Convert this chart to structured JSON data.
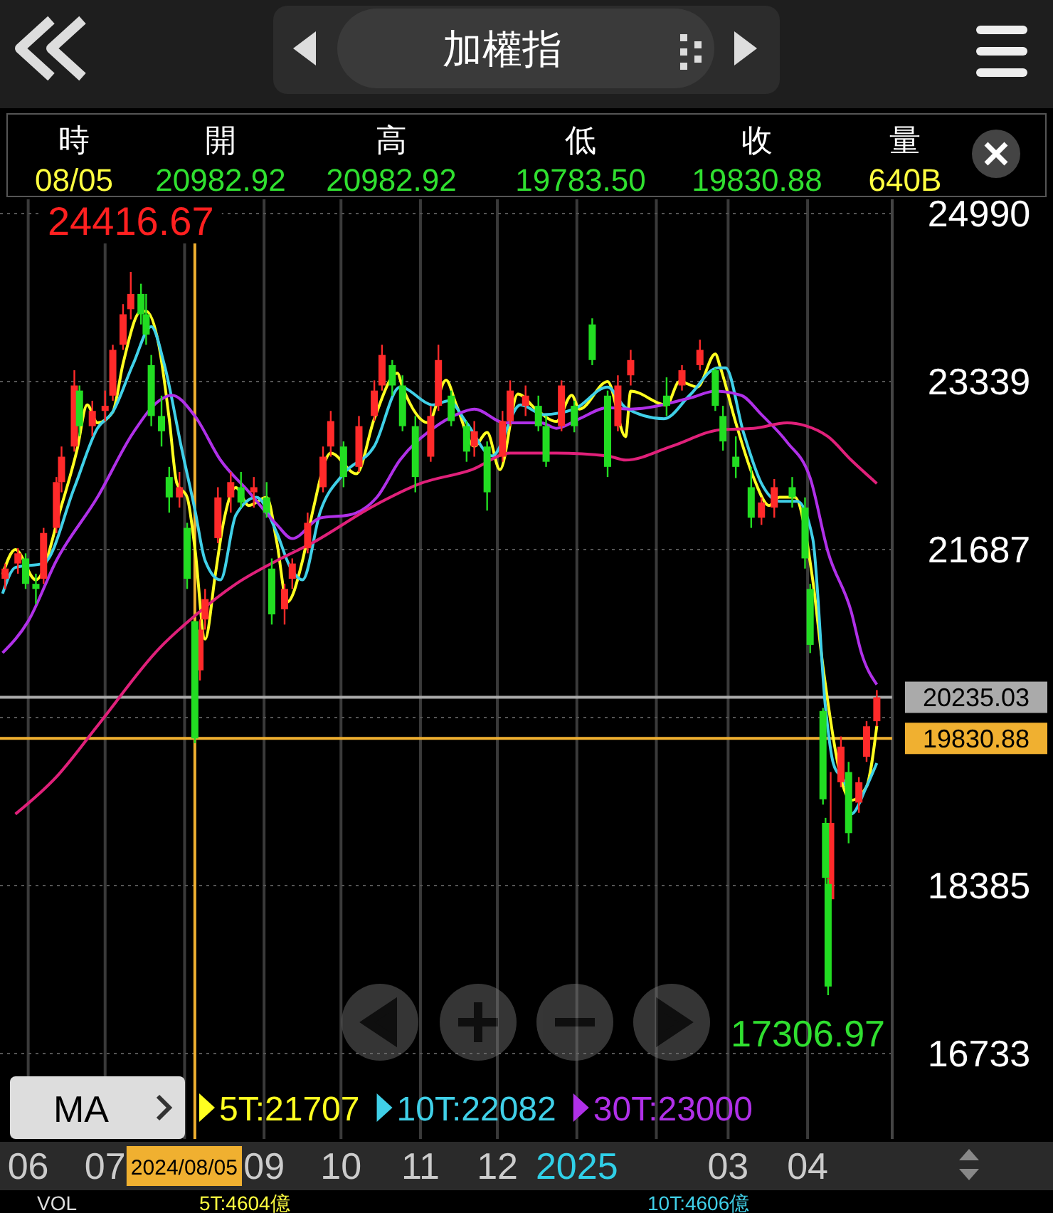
{
  "chart_data": {
    "type": "candlestick",
    "title": "加權指",
    "xlim": [
      "2024-05-21",
      "2025-05-04"
    ],
    "xticks": [
      {
        "value": "2024-06-01",
        "label": "06"
      },
      {
        "value": "2024-07-01",
        "label": "07"
      },
      {
        "value": "2024-08-01",
        "label": null
      },
      {
        "value": "2024-09-01",
        "label": "09"
      },
      {
        "value": "2024-10-01",
        "label": "10"
      },
      {
        "value": "2024-11-01",
        "label": "11"
      },
      {
        "value": "2024-12-01",
        "label": "12"
      },
      {
        "value": "2025-01-01",
        "label": "2025"
      },
      {
        "value": "2025-02-01",
        "label": null
      },
      {
        "value": "2025-03-01",
        "label": "03"
      },
      {
        "value": "2025-04-01",
        "label": "04"
      }
    ],
    "ylim": [
      16733,
      24990
    ],
    "yticks": [
      16733,
      18385,
      {
        "value": 20036,
        "label": null
      },
      21687,
      23339,
      24990
    ],
    "grid": true,
    "legend": "bottom",
    "marker": "none",
    "line_style": "solid",
    "ref_lines": [
      {
        "axis": "y",
        "value": 20235.03,
        "label": "20235.03",
        "color": "#aaaaaa"
      },
      {
        "axis": "y",
        "value": 19830.88,
        "label": "19830.88",
        "color": "#f0b030"
      },
      {
        "axis": "x",
        "value": "2024-08-05",
        "label": "2024/08/05",
        "color": "#f0b030"
      }
    ],
    "series": [
      {
        "type": "candlestick",
        "color": "#ff2a2a",
        "x": [
          "2024-05-23",
          "2024-05-28",
          "2024-06-07",
          "2024-06-12",
          "2024-06-14",
          "2024-06-19",
          "2024-06-26",
          "2024-07-01",
          "2024-07-04",
          "2024-07-08",
          "2024-07-11",
          "2024-07-30",
          "2024-08-07",
          "2024-08-09",
          "2024-08-14",
          "2024-08-19",
          "2024-08-28",
          "2024-09-09",
          "2024-09-12",
          "2024-09-18",
          "2024-09-24",
          "2024-09-27",
          "2024-10-08",
          "2024-10-14",
          "2024-10-17",
          "2024-11-05",
          "2024-11-08",
          "2024-11-22",
          "2024-12-03",
          "2024-12-06",
          "2024-12-12",
          "2024-12-26",
          "2025-01-17",
          "2025-01-22",
          "2025-02-11",
          "2025-02-18",
          "2025-03-14",
          "2025-03-19",
          "2025-04-10",
          "2025-04-14",
          "2025-04-21",
          "2025-04-24",
          "2025-04-28"
        ],
        "ohlc": [
          [
            21400,
            21550,
            21300,
            21500
          ],
          [
            21550,
            21700,
            21450,
            21650
          ],
          [
            21400,
            21900,
            21350,
            21850
          ],
          [
            21900,
            22400,
            21850,
            22350
          ],
          [
            22350,
            22700,
            22250,
            22600
          ],
          [
            22700,
            23450,
            22650,
            23300
          ],
          [
            22900,
            23150,
            22800,
            23050
          ],
          [
            23050,
            23250,
            22950,
            23100
          ],
          [
            23200,
            23700,
            23150,
            23650
          ],
          [
            23700,
            24100,
            23650,
            24000
          ],
          [
            24050,
            24416.67,
            23950,
            24200
          ],
          [
            22200,
            22450,
            22100,
            22300
          ],
          [
            20500,
            21000,
            20400,
            20900
          ],
          [
            21000,
            21300,
            20900,
            21200
          ],
          [
            21800,
            22300,
            21750,
            22200
          ],
          [
            22200,
            22450,
            22050,
            22350
          ],
          [
            22250,
            22400,
            22100,
            22300
          ],
          [
            21100,
            21350,
            20950,
            21300
          ],
          [
            21400,
            21600,
            21300,
            21550
          ],
          [
            21700,
            22050,
            21650,
            21950
          ],
          [
            22300,
            22700,
            22250,
            22600
          ],
          [
            22700,
            23050,
            22600,
            22950
          ],
          [
            22500,
            23000,
            22450,
            22900
          ],
          [
            23000,
            23350,
            22950,
            23250
          ],
          [
            23300,
            23700,
            23250,
            23600
          ],
          [
            22600,
            23100,
            22550,
            23000
          ],
          [
            23100,
            23700,
            23050,
            23550
          ],
          [
            22700,
            22950,
            22600,
            22850
          ],
          [
            22600,
            23050,
            22550,
            22950
          ],
          [
            22950,
            23350,
            22900,
            23250
          ],
          [
            23100,
            23300,
            23000,
            23200
          ],
          [
            22900,
            23350,
            22850,
            23300
          ],
          [
            22900,
            23400,
            22850,
            23300
          ],
          [
            23400,
            23650,
            23300,
            23550
          ],
          [
            23300,
            23500,
            23250,
            23450
          ],
          [
            23500,
            23750,
            23450,
            23650
          ],
          [
            22000,
            22200,
            21930,
            22150
          ],
          [
            22100,
            22380,
            22000,
            22300
          ],
          [
            18250,
            19500,
            18230,
            19000
          ],
          [
            19400,
            19850,
            19350,
            19750
          ],
          [
            19200,
            19450,
            19100,
            19400
          ],
          [
            19650,
            20000,
            19600,
            19950
          ],
          [
            20000,
            20306,
            19950,
            20235.03
          ]
        ]
      },
      {
        "type": "candlestick",
        "color": "#22dd22",
        "x": [
          "2024-05-31",
          "2024-06-04",
          "2024-06-21",
          "2024-07-15",
          "2024-07-17",
          "2024-07-19",
          "2024-07-23",
          "2024-07-26",
          "2024-08-02",
          "2024-08-05",
          "2024-08-23",
          "2024-09-02",
          "2024-09-04",
          "2024-10-02",
          "2024-10-21",
          "2024-10-25",
          "2024-10-30",
          "2024-11-13",
          "2024-11-19",
          "2024-11-27",
          "2024-12-17",
          "2024-12-20",
          "2024-12-31",
          "2025-01-07",
          "2025-01-13",
          "2025-02-05",
          "2025-02-24",
          "2025-02-27",
          "2025-03-04",
          "2025-03-10",
          "2025-03-26",
          "2025-03-31",
          "2025-04-02",
          "2025-04-07",
          "2025-04-08",
          "2025-04-09",
          "2025-04-17"
        ],
        "ohlc": [
          [
            21600,
            21650,
            21300,
            21350
          ],
          [
            21350,
            21450,
            21150,
            21300
          ],
          [
            23250,
            23300,
            22800,
            22900
          ],
          [
            24200,
            24300,
            23900,
            24000
          ],
          [
            24000,
            24200,
            23700,
            23800
          ],
          [
            23500,
            23600,
            22900,
            23000
          ],
          [
            23000,
            23200,
            22700,
            22850
          ],
          [
            22400,
            22500,
            22050,
            22200
          ],
          [
            21900,
            21950,
            21300,
            21400
          ],
          [
            20982.92,
            20982.92,
            19783.5,
            19830.88
          ],
          [
            22300,
            22450,
            22100,
            22150
          ],
          [
            22200,
            22350,
            22000,
            22050
          ],
          [
            21500,
            21600,
            20950,
            21050
          ],
          [
            22700,
            22750,
            22300,
            22400
          ],
          [
            23500,
            23550,
            23200,
            23300
          ],
          [
            23300,
            23400,
            22850,
            22900
          ],
          [
            22900,
            23000,
            22250,
            22400
          ],
          [
            23200,
            23250,
            22900,
            22950
          ],
          [
            22900,
            22950,
            22550,
            22650
          ],
          [
            22700,
            22750,
            22070,
            22250
          ],
          [
            23100,
            23200,
            22850,
            22900
          ],
          [
            22900,
            23000,
            22500,
            22550
          ],
          [
            23100,
            23150,
            22840,
            22900
          ],
          [
            23900,
            23960,
            23500,
            23550
          ],
          [
            23200,
            23250,
            22400,
            22500
          ],
          [
            23200,
            23380,
            23000,
            23100
          ],
          [
            23450,
            23470,
            23050,
            23100
          ],
          [
            23000,
            23100,
            22660,
            22750
          ],
          [
            22600,
            22800,
            22390,
            22500
          ],
          [
            22300,
            22500,
            21900,
            22000
          ],
          [
            22300,
            22400,
            22100,
            22200
          ],
          [
            22100,
            22200,
            21500,
            21600
          ],
          [
            21300,
            21350,
            20670,
            20750
          ],
          [
            20100,
            20130,
            19180,
            19232
          ],
          [
            19000,
            19050,
            18200,
            18460
          ],
          [
            18400,
            18450,
            17306.97,
            17392
          ],
          [
            19500,
            19600,
            18800,
            18900
          ]
        ]
      },
      {
        "type": "line",
        "name": "5T:21707",
        "color": "#ffff20",
        "x": [
          "2024-05-22",
          "2024-05-27",
          "2024-06-04",
          "2024-06-07",
          "2024-06-14",
          "2024-06-20",
          "2024-06-24",
          "2024-06-28",
          "2024-07-04",
          "2024-07-08",
          "2024-07-15",
          "2024-07-17",
          "2024-07-22",
          "2024-07-26",
          "2024-07-29",
          "2024-08-02",
          "2024-08-05",
          "2024-08-09",
          "2024-08-13",
          "2024-08-16",
          "2024-08-21",
          "2024-08-26",
          "2024-09-02",
          "2024-09-06",
          "2024-09-10",
          "2024-09-16",
          "2024-09-20",
          "2024-09-27",
          "2024-10-07",
          "2024-10-14",
          "2024-10-23",
          "2024-10-25",
          "2024-11-04",
          "2024-11-11",
          "2024-11-15",
          "2024-11-22",
          "2024-11-27",
          "2024-12-02",
          "2024-12-09",
          "2024-12-16",
          "2024-12-24",
          "2024-12-30",
          "2025-01-02",
          "2025-01-13",
          "2025-01-20",
          "2025-01-22",
          "2025-02-05",
          "2025-02-10",
          "2025-02-17",
          "2025-02-24",
          "2025-02-26",
          "2025-03-04",
          "2025-03-11",
          "2025-03-17",
          "2025-03-21",
          "2025-03-27",
          "2025-03-31",
          "2025-04-03",
          "2025-04-07",
          "2025-04-10",
          "2025-04-15",
          "2025-04-18",
          "2025-04-24",
          "2025-04-28"
        ],
        "values": [
          21443,
          21687,
          21389,
          null,
          22120,
          22662,
          23109,
          22933,
          23041,
          23515,
          24030,
          24030,
          23691,
          22973,
          22337,
          22201,
          21707,
          20807,
          21443,
          21931,
          22296,
          22120,
          22201,
          21755,
          21172,
          21579,
          22066,
          22635,
          22432,
          22973,
          23420,
          23285,
          22933,
          23352,
          23109,
          22703,
          22838,
          22472,
          23217,
          23068,
          22946,
          23204,
          23068,
          23339,
          22797,
          23244,
          23109,
          23339,
          23285,
          23610,
          23474,
          22933,
          22391,
          22120,
          22201,
          22201,
          null,
          21389,
          20536,
          null,
          null,
          19223,
          19358,
          19954
        ]
      },
      {
        "type": "line",
        "name": "10T:22082",
        "color": "#40d0e8",
        "x": [
          "2024-05-22",
          "2024-05-27",
          "2024-06-07",
          "2024-06-19",
          "2024-06-28",
          "2024-07-04",
          "2024-07-12",
          "2024-07-19",
          "2024-07-24",
          "2024-07-31",
          "2024-08-05",
          "2024-08-09",
          "2024-08-15",
          "2024-08-21",
          "2024-08-29",
          "2024-09-06",
          "2024-09-11",
          "2024-09-16",
          "2024-09-23",
          "2024-10-02",
          "2024-10-14",
          "2024-10-24",
          "2024-11-06",
          "2024-11-12",
          "2024-11-19",
          "2024-11-29",
          "2024-12-10",
          "2024-12-19",
          "2024-12-31",
          "2025-01-13",
          "2025-01-20",
          "2025-02-04",
          "2025-02-14",
          "2025-02-25",
          "2025-02-28",
          "2025-03-07",
          "2025-03-14",
          "2025-03-21",
          "2025-03-28",
          "2025-04-03",
          "2025-04-08",
          "2025-04-11",
          "2025-04-16",
          "2025-04-18",
          "2025-04-24",
          "2025-04-28"
        ],
        "values": [
          21254,
          21511,
          21552,
          22296,
          22879,
          23041,
          23515,
          23880,
          23515,
          22662,
          22082,
          21579,
          21389,
          22026,
          22201,
          21849,
          21524,
          21389,
          22066,
          22432,
          22703,
          23285,
          23109,
          23149,
          22933,
          22608,
          23109,
          23014,
          23068,
          23285,
          23082,
          22973,
          23204,
          23474,
          23474,
          22838,
          22337,
          22161,
          22161,
          21795,
          20130,
          19588,
          19358,
          19087,
          19358,
          19588
        ]
      },
      {
        "type": "line",
        "name": "30T:23000",
        "color": "#b030e8",
        "x": [
          "2024-05-22",
          "2024-06-01",
          "2024-06-12",
          "2024-06-28",
          "2024-07-12",
          "2024-07-22",
          "2024-07-27",
          "2024-08-05",
          "2024-08-15",
          "2024-08-26",
          "2024-09-06",
          "2024-09-12",
          "2024-09-23",
          "2024-10-04",
          "2024-10-15",
          "2024-10-24",
          "2024-11-06",
          "2024-11-15",
          "2024-11-22",
          "2024-12-04",
          "2024-12-18",
          "2024-12-24",
          "2025-01-02",
          "2025-01-13",
          "2025-01-22",
          "2025-02-14",
          "2025-02-24",
          "2025-03-06",
          "2025-03-14",
          "2025-03-24",
          "2025-04-02",
          "2025-04-09",
          "2025-04-18",
          "2025-04-22",
          "2025-04-28"
        ],
        "values": [
          20671,
          20983,
          21579,
          22201,
          22838,
          23149,
          23204,
          23000,
          22567,
          22256,
          21931,
          21795,
          21998,
          22026,
          22201,
          22567,
          22879,
          23014,
          23068,
          22933,
          22933,
          22879,
          22973,
          23082,
          23068,
          23176,
          23244,
          23204,
          23014,
          22743,
          22391,
          21660,
          21078,
          20671,
          20360
        ]
      },
      {
        "type": "line",
        "color": "#e0207a",
        "x": [
          "2024-05-27",
          "2024-06-12",
          "2024-06-28",
          "2024-07-22",
          "2024-08-05",
          "2024-08-21",
          "2024-09-06",
          "2024-09-20",
          "2024-10-14",
          "2024-11-01",
          "2024-11-21",
          "2024-12-06",
          "2024-12-24",
          "2025-01-13",
          "2025-01-20",
          "2025-02-07",
          "2025-02-26",
          "2025-03-11",
          "2025-03-24",
          "2025-03-31",
          "2025-04-09",
          "2025-04-18",
          "2025-04-28"
        ],
        "values": [
          19087,
          19453,
          19954,
          20712,
          21037,
          21349,
          21579,
          21755,
          22120,
          22337,
          22472,
          22635,
          22635,
          22608,
          22567,
          22703,
          22865,
          22879,
          22933,
          22906,
          22797,
          22567,
          22337
        ]
      }
    ],
    "annotations": [
      "時",
      "開",
      "高",
      "低",
      "收",
      "量",
      "08/05",
      "20982.92",
      "20982.92",
      "19783.50",
      "19830.88",
      "640B",
      "MA",
      "VOL",
      "5T:4604億",
      "10T:4606億",
      {
        "text": "24416.67",
        "x": "2024-07-11",
        "y": 24416.67
      },
      {
        "text": "17306.97",
        "x": "2025-04-09",
        "y": 17306.97
      }
    ]
  }
}
